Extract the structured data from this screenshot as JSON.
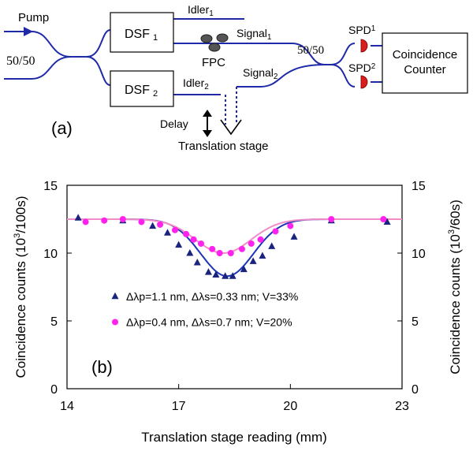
{
  "diagram": {
    "pump_label": "Pump",
    "coupler_in_label": "50/50",
    "coupler_out_label": "50/50",
    "dsf1": {
      "main": "DSF",
      "sub": "1"
    },
    "dsf2": {
      "main": "DSF",
      "sub": "2"
    },
    "idler1": {
      "main": "Idler",
      "sub": "1"
    },
    "idler2": {
      "main": "Idler",
      "sub": "2"
    },
    "signal1": {
      "main": "Signal",
      "sub": "1"
    },
    "signal2": {
      "main": "Signal",
      "sub": "2"
    },
    "fpc_label": "FPC",
    "spd1": {
      "main": "SPD",
      "sub": "1"
    },
    "spd2": {
      "main": "SPD",
      "sub": "2"
    },
    "counter_line1": "Coincidence",
    "counter_line2": "Counter",
    "delay_label": "Delay",
    "stage_label": "Translation stage",
    "panel_label": "(a)",
    "colors": {
      "fiber": "#1f2aa8",
      "detector": "#d81e1e",
      "fpc": "#555555"
    }
  },
  "chart_data": {
    "type": "scatter",
    "panel_label": "(b)",
    "xlabel": "Translation stage reading (mm)",
    "ylabel_left": {
      "main": "Coincidence counts (10",
      "sup": "3",
      "end": "/100s)"
    },
    "ylabel_right": {
      "main": "Coincidence counts (10",
      "sup": "3",
      "end": "/60s)"
    },
    "xlim": [
      14,
      23
    ],
    "ylim": [
      0,
      15
    ],
    "x_ticks": [
      14,
      17,
      20,
      23
    ],
    "x_tick_labels": [
      "14",
      "17",
      "20",
      "23"
    ],
    "y_ticks": [
      0,
      5,
      10,
      15
    ],
    "y_tick_labels": [
      "0",
      "5",
      "10",
      "15"
    ],
    "grid": false,
    "series": [
      {
        "legend": "Δλp=1.1 nm,  Δλs=0.33 nm; V=33%",
        "marker": "triangle",
        "color": "#1a237e",
        "line_color": "#1a35b5",
        "points": [
          [
            14.3,
            12.6
          ],
          [
            15.5,
            12.4
          ],
          [
            16.3,
            12.0
          ],
          [
            16.7,
            11.5
          ],
          [
            17.0,
            10.6
          ],
          [
            17.3,
            10.0
          ],
          [
            17.5,
            9.3
          ],
          [
            17.8,
            8.6
          ],
          [
            18.0,
            8.4
          ],
          [
            18.25,
            8.3
          ],
          [
            18.45,
            8.3
          ],
          [
            18.75,
            8.8
          ],
          [
            19.0,
            9.4
          ],
          [
            19.25,
            9.8
          ],
          [
            19.5,
            10.5
          ],
          [
            20.1,
            11.2
          ],
          [
            21.1,
            12.4
          ],
          [
            22.6,
            12.3
          ]
        ],
        "fit": {
          "baseline": 12.5,
          "min": 8.3,
          "center": 18.3,
          "width": 1.0
        }
      },
      {
        "legend": "Δλp=0.4 nm,  Δλs=0.7 nm; V=20%",
        "marker": "circle",
        "color": "#ff22ee",
        "line_color": "#f28cc8",
        "points": [
          [
            14.5,
            12.3
          ],
          [
            15.0,
            12.4
          ],
          [
            15.5,
            12.5
          ],
          [
            16.0,
            12.3
          ],
          [
            16.5,
            12.1
          ],
          [
            16.9,
            11.7
          ],
          [
            17.2,
            11.4
          ],
          [
            17.4,
            11.0
          ],
          [
            17.6,
            10.7
          ],
          [
            17.9,
            10.3
          ],
          [
            18.1,
            10.0
          ],
          [
            18.4,
            10.0
          ],
          [
            18.7,
            10.3
          ],
          [
            18.95,
            10.7
          ],
          [
            19.2,
            11.0
          ],
          [
            19.6,
            11.6
          ],
          [
            20.0,
            12.0
          ],
          [
            21.1,
            12.5
          ],
          [
            22.5,
            12.5
          ]
        ],
        "fit": {
          "baseline": 12.5,
          "min": 10.0,
          "center": 18.2,
          "width": 1.05
        }
      }
    ]
  }
}
